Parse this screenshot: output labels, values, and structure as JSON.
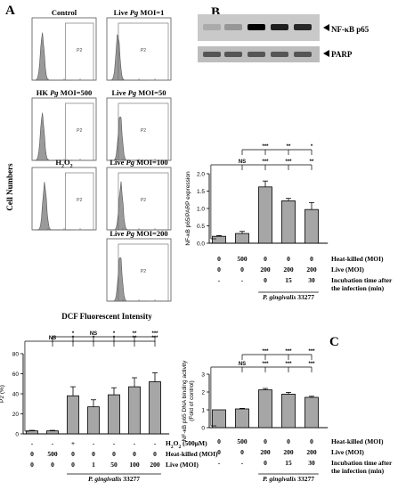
{
  "panel_labels": {
    "a": "A",
    "b": "B",
    "c": "C"
  },
  "flow": {
    "ylabel": "Cell Numbers",
    "xlabel": "DCF Fluorescent Intensity",
    "gate_label": "P2",
    "histograms": [
      {
        "title": "Control"
      },
      {
        "title_pre": "Live ",
        "title_it": "Pg",
        "title_post": " MOI=1"
      },
      {
        "title_pre": "HK ",
        "title_it": "Pg",
        "title_post": " MOI=500"
      },
      {
        "title_pre": "Live ",
        "title_it": "Pg",
        "title_post": " MOI=50"
      },
      {
        "title_pre": "H",
        "title_sub": "2",
        "title_mid": "O",
        "title_sub2": "2"
      },
      {
        "title_pre": "Live ",
        "title_it": "Pg",
        "title_post": " MOI=100"
      },
      {
        "title_pre": "Live ",
        "title_it": "Pg",
        "title_post": " MOI=200"
      }
    ]
  },
  "blot": {
    "bands": [
      {
        "label": "NF-κB p65"
      },
      {
        "label": "PARP"
      }
    ]
  },
  "chart_data": [
    {
      "panel": "A",
      "type": "bar",
      "ylabel": "P2 (%)",
      "ylim": [
        0,
        80
      ],
      "yticks": [
        "0",
        "20",
        "40",
        "60",
        "80"
      ],
      "values": [
        3,
        3,
        38,
        27,
        39,
        47,
        52
      ],
      "errors": [
        0.5,
        0.5,
        9,
        7,
        7,
        9,
        9
      ],
      "sig_top": [
        "*",
        "NS",
        "*",
        "**",
        "***"
      ],
      "sig_ctrl": [
        "NS",
        "*",
        "*",
        "*",
        "**",
        "***"
      ],
      "rows": [
        {
          "label": "H2O2 (500μM)",
          "cells": [
            "-",
            "-",
            "+",
            "-",
            "-",
            "-",
            "-"
          ]
        },
        {
          "label": "Heat-killed (MOI)",
          "cells": [
            "0",
            "500",
            "0",
            "0",
            "0",
            "0",
            "0"
          ]
        },
        {
          "label": "Live (MOI)",
          "cells": [
            "0",
            "0",
            "0",
            "1",
            "50",
            "100",
            "200"
          ]
        }
      ],
      "strain": "P. gingivalis 33277"
    },
    {
      "panel": "B",
      "type": "bar",
      "ylabel": "NF-κB p65/PARP expression",
      "ylim": [
        0,
        2.0
      ],
      "yticks": [
        "0.0",
        "0.5",
        "1.0",
        "1.5",
        "2.0"
      ],
      "values": [
        0.2,
        0.28,
        1.62,
        1.22,
        0.97
      ],
      "errors": [
        0.02,
        0.06,
        0.17,
        0.07,
        0.2
      ],
      "sig_top": [
        "***",
        "**",
        "*"
      ],
      "sig_ctrl": [
        "NS",
        "***",
        "***",
        "**"
      ],
      "rows": [
        {
          "label": "Heat-killed (MOI)",
          "cells": [
            "0",
            "500",
            "0",
            "0",
            "0"
          ]
        },
        {
          "label": "Live (MOI)",
          "cells": [
            "0",
            "0",
            "200",
            "200",
            "200"
          ]
        },
        {
          "label": "Incubation time after the infection (min)",
          "cells": [
            "-",
            "-",
            "0",
            "15",
            "30"
          ]
        }
      ],
      "strain": "P. gingivalis 33277"
    },
    {
      "panel": "C",
      "type": "bar",
      "ylabel": "NF-κB p65 DNA binding activity (Fold of control)",
      "ylim": [
        0,
        3
      ],
      "yticks": [
        "0",
        "1",
        "2",
        "3"
      ],
      "values": [
        1.0,
        1.05,
        2.12,
        1.88,
        1.7
      ],
      "errors": [
        0.0,
        0.03,
        0.08,
        0.1,
        0.06
      ],
      "sig_top": [
        "***",
        "***",
        "***"
      ],
      "sig_ctrl": [
        "NS",
        "***",
        "***",
        "***"
      ],
      "rows": [
        {
          "label": "Heat-killed (MOI)",
          "cells": [
            "0",
            "500",
            "0",
            "0",
            "0"
          ]
        },
        {
          "label": "Live (MOI)",
          "cells": [
            "0",
            "0",
            "200",
            "200",
            "200"
          ]
        },
        {
          "label": "Incubation time after the infection (min)",
          "cells": [
            "-",
            "-",
            "0",
            "15",
            "30"
          ]
        }
      ],
      "strain": "P. gingivalis 33277"
    }
  ]
}
